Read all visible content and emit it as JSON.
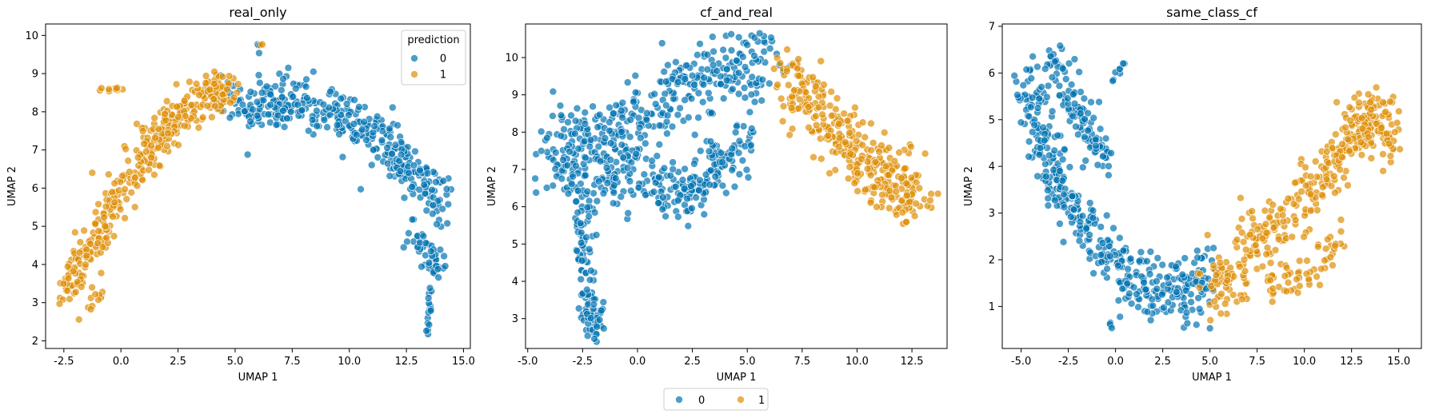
{
  "chart_data": [
    {
      "type": "scatter",
      "title": "real_only",
      "xlabel": "UMAP 1",
      "ylabel": "UMAP 2",
      "xlim": [
        -3.3,
        15.3
      ],
      "ylim": [
        1.8,
        10.3
      ],
      "xticks": [
        -2.5,
        0.0,
        2.5,
        5.0,
        7.5,
        10.0,
        12.5,
        15.0
      ],
      "yticks": [
        2,
        3,
        4,
        5,
        6,
        7,
        8,
        9,
        10
      ],
      "grid": false,
      "legend": {
        "title": "prediction",
        "placement": "upper right",
        "entries": [
          "0",
          "1"
        ]
      },
      "series": [
        {
          "name": "0",
          "color": "#0173b2",
          "regions": [
            {
              "path": [
                [
                  4.5,
                  8.3
                ],
                [
                  6.5,
                  8.2
                ],
                [
                  9.0,
                  8.1
                ],
                [
                  11.0,
                  7.4
                ],
                [
                  12.5,
                  6.6
                ],
                [
                  14.0,
                  5.6
                ]
              ],
              "spread": 0.45,
              "n": 380
            },
            {
              "path": [
                [
                  12.5,
                  5.0
                ],
                [
                  13.5,
                  4.3
                ],
                [
                  14.0,
                  3.8
                ]
              ],
              "spread": 0.3,
              "n": 50
            },
            {
              "path": [
                [
                  13.6,
                  3.6
                ],
                [
                  13.4,
                  2.2
                ]
              ],
              "spread": 0.06,
              "n": 16
            },
            {
              "path": [
                [
                  6.0,
                  9.8
                ],
                [
                  6.1,
                  9.5
                ]
              ],
              "spread": 0.05,
              "n": 4
            }
          ]
        },
        {
          "name": "1",
          "color": "#de8f05",
          "regions": [
            {
              "path": [
                [
                  -2.3,
                  3.4
                ],
                [
                  -1.5,
                  4.3
                ],
                [
                  -0.5,
                  5.3
                ],
                [
                  0.5,
                  6.4
                ],
                [
                  1.5,
                  7.3
                ],
                [
                  2.5,
                  8.0
                ],
                [
                  3.8,
                  8.4
                ],
                [
                  5.0,
                  8.4
                ]
              ],
              "spread": 0.4,
              "n": 380
            },
            {
              "path": [
                [
                  -1.5,
                  2.9
                ],
                [
                  -0.8,
                  3.3
                ]
              ],
              "spread": 0.12,
              "n": 10
            },
            {
              "path": [
                [
                  -1.0,
                  8.6
                ],
                [
                  0.3,
                  8.6
                ]
              ],
              "spread": 0.05,
              "n": 10
            },
            {
              "path": [
                [
                  6.0,
                  9.8
                ],
                [
                  6.2,
                  9.8
                ]
              ],
              "spread": 0.03,
              "n": 2
            }
          ]
        }
      ]
    },
    {
      "type": "scatter",
      "title": "cf_and_real",
      "xlabel": "UMAP 1",
      "ylabel": "UMAP 2",
      "xlim": [
        -5.1,
        14.1
      ],
      "ylim": [
        2.2,
        10.9
      ],
      "xticks": [
        -5.0,
        -2.5,
        0.0,
        2.5,
        5.0,
        7.5,
        10.0,
        12.5
      ],
      "yticks": [
        3,
        4,
        5,
        6,
        7,
        8,
        9,
        10
      ],
      "grid": false,
      "series": [
        {
          "name": "0",
          "color": "#0173b2",
          "regions": [
            {
              "path": [
                [
                  -4.2,
                  7.6
                ],
                [
                  -2.5,
                  7.5
                ],
                [
                  -1.0,
                  7.8
                ],
                [
                  0.5,
                  8.6
                ],
                [
                  2.5,
                  9.2
                ],
                [
                  4.0,
                  9.6
                ],
                [
                  6.0,
                  9.8
                ]
              ],
              "spread": 0.7,
              "n": 380
            },
            {
              "path": [
                [
                  -3.5,
                  6.5
                ],
                [
                  -1.5,
                  6.5
                ],
                [
                  0.5,
                  6.8
                ],
                [
                  2.0,
                  6.2
                ],
                [
                  3.5,
                  7.0
                ],
                [
                  5.0,
                  7.8
                ]
              ],
              "spread": 0.5,
              "n": 260
            },
            {
              "path": [
                [
                  -2.5,
                  6.0
                ],
                [
                  -2.5,
                  4.8
                ],
                [
                  -2.3,
                  3.8
                ],
                [
                  -2.0,
                  3.0
                ],
                [
                  -1.9,
                  2.7
                ]
              ],
              "spread": 0.3,
              "n": 110
            }
          ]
        },
        {
          "name": "1",
          "color": "#de8f05",
          "regions": [
            {
              "path": [
                [
                  6.5,
                  9.8
                ],
                [
                  7.5,
                  8.8
                ],
                [
                  9.0,
                  8.2
                ],
                [
                  10.0,
                  7.4
                ],
                [
                  11.0,
                  6.8
                ],
                [
                  12.0,
                  6.5
                ],
                [
                  13.0,
                  6.2
                ]
              ],
              "spread": 0.6,
              "n": 340
            }
          ]
        }
      ]
    },
    {
      "type": "scatter",
      "title": "same_class_cf",
      "xlabel": "UMAP 1",
      "ylabel": "UMAP 2",
      "xlim": [
        -6.0,
        16.2
      ],
      "ylim": [
        0.1,
        7.05
      ],
      "xticks": [
        -5.0,
        -2.5,
        0.0,
        2.5,
        5.0,
        7.5,
        10.0,
        12.5,
        15.0
      ],
      "yticks": [
        1,
        2,
        3,
        4,
        5,
        6,
        7
      ],
      "grid": false,
      "series": [
        {
          "name": "0",
          "color": "#0173b2",
          "regions": [
            {
              "path": [
                [
                  -4.8,
                  5.9
                ],
                [
                  -4.2,
                  5.0
                ],
                [
                  -3.5,
                  4.2
                ],
                [
                  -2.8,
                  3.4
                ],
                [
                  -1.5,
                  2.6
                ],
                [
                  0.0,
                  2.0
                ],
                [
                  1.0,
                  1.5
                ],
                [
                  2.5,
                  1.4
                ],
                [
                  3.8,
                  1.3
                ],
                [
                  5.0,
                  1.6
                ]
              ],
              "spread": 0.45,
              "n": 420
            },
            {
              "path": [
                [
                  -3.5,
                  6.6
                ],
                [
                  -2.5,
                  5.5
                ],
                [
                  -1.5,
                  4.8
                ],
                [
                  -0.5,
                  4.2
                ]
              ],
              "spread": 0.4,
              "n": 120
            },
            {
              "path": [
                [
                  -0.2,
                  5.8
                ],
                [
                  0.5,
                  6.3
                ]
              ],
              "spread": 0.05,
              "n": 8
            },
            {
              "path": [
                [
                  -0.3,
                  0.6
                ],
                [
                  -0.2,
                  0.55
                ]
              ],
              "spread": 0.05,
              "n": 4
            }
          ]
        },
        {
          "name": "1",
          "color": "#de8f05",
          "regions": [
            {
              "path": [
                [
                  5.0,
                  1.3
                ],
                [
                  6.5,
                  1.9
                ],
                [
                  8.0,
                  2.5
                ],
                [
                  9.5,
                  3.2
                ],
                [
                  11.0,
                  3.9
                ],
                [
                  12.5,
                  4.6
                ],
                [
                  13.5,
                  5.1
                ],
                [
                  15.0,
                  4.5
                ]
              ],
              "spread": 0.5,
              "n": 380
            },
            {
              "path": [
                [
                  8.0,
                  1.4
                ],
                [
                  10.0,
                  1.7
                ],
                [
                  12.0,
                  2.5
                ]
              ],
              "spread": 0.3,
              "n": 60
            }
          ]
        }
      ]
    }
  ],
  "figure_legend": {
    "entries": [
      "0",
      "1"
    ],
    "colors": [
      "#0173b2",
      "#de8f05"
    ]
  }
}
